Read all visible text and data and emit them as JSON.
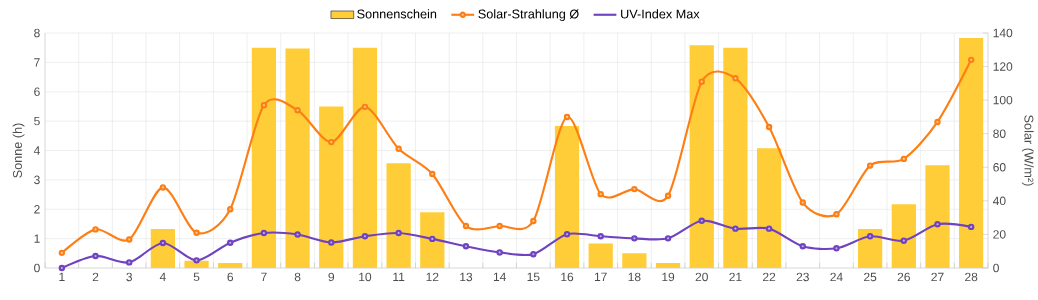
{
  "chart_data": {
    "type": "bar",
    "categories": [
      "1",
      "2",
      "3",
      "4",
      "5",
      "6",
      "7",
      "8",
      "9",
      "10",
      "11",
      "12",
      "13",
      "14",
      "15",
      "16",
      "17",
      "18",
      "19",
      "20",
      "21",
      "22",
      "23",
      "24",
      "25",
      "26",
      "27",
      "28"
    ],
    "series": [
      {
        "name": "Sonnenschein",
        "color": "#ffcd38",
        "values": [
          0,
          0,
          0,
          1.33,
          0.25,
          0.17,
          7.5,
          7.47,
          5.5,
          7.5,
          3.57,
          1.9,
          0,
          0,
          0,
          4.83,
          0.83,
          0.5,
          0.17,
          7.58,
          7.5,
          4.08,
          0,
          0,
          1.33,
          2.17,
          3.5,
          7.83
        ]
      },
      {
        "name": "Solar-Strahlung Ø",
        "type": "line",
        "axis": "y2",
        "marker": "circle",
        "color": "#fd7e14",
        "values": [
          9,
          23,
          17,
          48,
          21,
          35,
          97,
          94,
          75,
          96,
          71,
          56,
          25,
          25,
          28,
          90,
          44,
          47,
          43,
          111,
          113,
          84,
          39,
          32,
          61,
          65,
          87,
          124
        ]
      },
      {
        "name": "UV-Index Max",
        "type": "line",
        "marker": "circle",
        "color": "#6f42c1",
        "values": [
          0,
          0.41,
          0.19,
          0.85,
          0.26,
          0.86,
          1.19,
          1.14,
          0.87,
          1.08,
          1.19,
          0.99,
          0.74,
          0.53,
          0.47,
          1.15,
          1.08,
          1.01,
          1.01,
          1.61,
          1.34,
          1.34,
          0.74,
          0.67,
          1.08,
          0.93,
          1.49,
          1.4
        ]
      }
    ],
    "ylabel": "Sonne (h)",
    "y2label": "Solar (W/m²)",
    "ylim": [
      0,
      8
    ],
    "yticks": [
      0,
      1,
      2,
      3,
      4,
      5,
      6,
      7,
      8
    ],
    "y2lim": [
      0,
      140
    ],
    "y2ticks": [
      0,
      20,
      40,
      60,
      80,
      100,
      120,
      140
    ],
    "grid": true,
    "legend": "top"
  }
}
